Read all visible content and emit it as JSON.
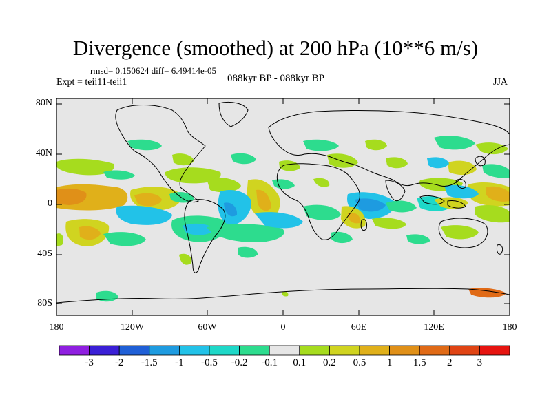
{
  "title": "Divergence (smoothed) at 200 hPa (10**6 m/s)",
  "stats": "rmsd= 0.150624 diff= 6.49414e-05",
  "experiment": "Expt = teii11-teii1",
  "period": "088kyr BP - 088kyr BP",
  "season": "JJA",
  "lat_ticks": [
    "80N",
    "40N",
    "0",
    "40S",
    "80S"
  ],
  "lon_ticks": [
    "180",
    "120W",
    "60W",
    "0",
    "60E",
    "120E",
    "180"
  ],
  "colorbar": {
    "colors": [
      "#8f1fe0",
      "#3a1fd6",
      "#1f5fd6",
      "#1e9be0",
      "#22c2e8",
      "#1ed8c8",
      "#2ddc8e",
      "#e6e6e6",
      "#a6dc1e",
      "#d0d420",
      "#e0b01a",
      "#e09018",
      "#e06a16",
      "#e04414",
      "#e61410"
    ],
    "labels": [
      "-3",
      "-2",
      "-1.5",
      "-1",
      "-0.5",
      "-0.2",
      "-0.1",
      "0.1",
      "0.2",
      "0.5",
      "1",
      "1.5",
      "2",
      "3"
    ]
  }
}
